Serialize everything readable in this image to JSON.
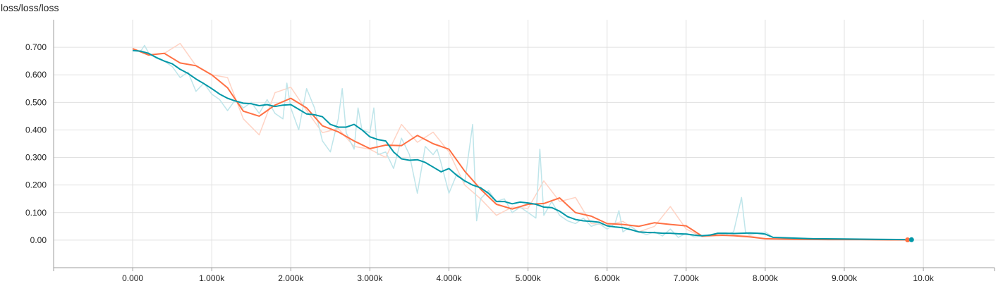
{
  "chart_data": {
    "type": "line",
    "title": "loss/loss/loss",
    "xlabel": "",
    "ylabel": "",
    "xlim": [
      -1000,
      10900
    ],
    "ylim": [
      -0.1,
      0.8
    ],
    "x_ticks": [
      0,
      1000,
      2000,
      3000,
      4000,
      5000,
      6000,
      7000,
      8000,
      9000,
      10000
    ],
    "x_tick_labels": [
      "0.000",
      "1.000k",
      "2.000k",
      "3.000k",
      "4.000k",
      "5.000k",
      "6.000k",
      "7.000k",
      "8.000k",
      "9.000k",
      "10.0k"
    ],
    "y_ticks": [
      0,
      0.1,
      0.2,
      0.3,
      0.4,
      0.5,
      0.6,
      0.7
    ],
    "y_tick_labels": [
      "0.00",
      "0.100",
      "0.200",
      "0.300",
      "0.400",
      "0.500",
      "0.600",
      "0.700"
    ],
    "grid": true,
    "colors": {
      "orange": "#ff7043",
      "orange_raw": "#ffd3c4",
      "teal": "#0097a7",
      "teal_raw": "#bfe5ea",
      "grid": "#e0e0e0",
      "axis": "#9e9e9e"
    },
    "series": [
      {
        "color": "orange",
        "raw": [
          [
            0,
            0.695
          ],
          [
            200,
            0.672
          ],
          [
            400,
            0.678
          ],
          [
            600,
            0.714
          ],
          [
            800,
            0.633
          ],
          [
            1000,
            0.6
          ],
          [
            1200,
            0.59
          ],
          [
            1400,
            0.44
          ],
          [
            1600,
            0.382
          ],
          [
            1800,
            0.535
          ],
          [
            2000,
            0.555
          ],
          [
            2200,
            0.47
          ],
          [
            2400,
            0.39
          ],
          [
            2600,
            0.405
          ],
          [
            2800,
            0.34
          ],
          [
            3000,
            0.33
          ],
          [
            3200,
            0.3
          ],
          [
            3400,
            0.42
          ],
          [
            3600,
            0.355
          ],
          [
            3800,
            0.392
          ],
          [
            4000,
            0.32
          ],
          [
            4200,
            0.2
          ],
          [
            4400,
            0.15
          ],
          [
            4600,
            0.09
          ],
          [
            4800,
            0.12
          ],
          [
            5000,
            0.115
          ],
          [
            5200,
            0.215
          ],
          [
            5400,
            0.14
          ],
          [
            5600,
            0.155
          ],
          [
            5800,
            0.06
          ],
          [
            6000,
            0.055
          ],
          [
            6200,
            0.068
          ],
          [
            6400,
            0.03
          ],
          [
            6600,
            0.05
          ],
          [
            6800,
            0.122
          ],
          [
            7000,
            0.04
          ],
          [
            7200,
            0.012
          ],
          [
            7400,
            0.015
          ],
          [
            7600,
            0.018
          ],
          [
            7800,
            0.016
          ],
          [
            8000,
            0.004
          ],
          [
            8400,
            0.003
          ],
          [
            8800,
            0.002
          ],
          [
            9200,
            0.002
          ],
          [
            9600,
            0.001
          ],
          [
            9800,
            0.001
          ]
        ],
        "smoothed": [
          [
            0,
            0.695
          ],
          [
            200,
            0.672
          ],
          [
            400,
            0.678
          ],
          [
            600,
            0.643
          ],
          [
            800,
            0.633
          ],
          [
            1000,
            0.6
          ],
          [
            1200,
            0.553
          ],
          [
            1400,
            0.468
          ],
          [
            1600,
            0.45
          ],
          [
            1800,
            0.49
          ],
          [
            2000,
            0.515
          ],
          [
            2200,
            0.48
          ],
          [
            2400,
            0.415
          ],
          [
            2600,
            0.393
          ],
          [
            2800,
            0.36
          ],
          [
            3000,
            0.332
          ],
          [
            3200,
            0.345
          ],
          [
            3400,
            0.343
          ],
          [
            3600,
            0.38
          ],
          [
            3800,
            0.35
          ],
          [
            4000,
            0.33
          ],
          [
            4200,
            0.25
          ],
          [
            4400,
            0.185
          ],
          [
            4600,
            0.13
          ],
          [
            4800,
            0.113
          ],
          [
            5000,
            0.13
          ],
          [
            5200,
            0.133
          ],
          [
            5400,
            0.153
          ],
          [
            5600,
            0.1
          ],
          [
            5800,
            0.087
          ],
          [
            6000,
            0.06
          ],
          [
            6200,
            0.057
          ],
          [
            6400,
            0.05
          ],
          [
            6600,
            0.063
          ],
          [
            6800,
            0.057
          ],
          [
            7000,
            0.052
          ],
          [
            7200,
            0.015
          ],
          [
            7400,
            0.018
          ],
          [
            7600,
            0.016
          ],
          [
            7800,
            0.012
          ],
          [
            8000,
            0.005
          ],
          [
            8400,
            0.003
          ],
          [
            8800,
            0.002
          ],
          [
            9200,
            0.002
          ],
          [
            9600,
            0.001
          ],
          [
            9800,
            0.001
          ]
        ]
      },
      {
        "color": "teal",
        "raw": [
          [
            0,
            0.69
          ],
          [
            100,
            0.685
          ],
          [
            150,
            0.707
          ],
          [
            200,
            0.68
          ],
          [
            300,
            0.66
          ],
          [
            400,
            0.65
          ],
          [
            500,
            0.63
          ],
          [
            600,
            0.59
          ],
          [
            700,
            0.61
          ],
          [
            800,
            0.54
          ],
          [
            900,
            0.57
          ],
          [
            1000,
            0.53
          ],
          [
            1100,
            0.51
          ],
          [
            1200,
            0.47
          ],
          [
            1300,
            0.51
          ],
          [
            1400,
            0.48
          ],
          [
            1500,
            0.5
          ],
          [
            1600,
            0.46
          ],
          [
            1700,
            0.51
          ],
          [
            1800,
            0.46
          ],
          [
            1900,
            0.44
          ],
          [
            1950,
            0.57
          ],
          [
            2000,
            0.48
          ],
          [
            2100,
            0.4
          ],
          [
            2200,
            0.55
          ],
          [
            2300,
            0.48
          ],
          [
            2400,
            0.36
          ],
          [
            2500,
            0.32
          ],
          [
            2600,
            0.44
          ],
          [
            2650,
            0.55
          ],
          [
            2700,
            0.39
          ],
          [
            2800,
            0.33
          ],
          [
            2850,
            0.48
          ],
          [
            2900,
            0.4
          ],
          [
            3000,
            0.39
          ],
          [
            3050,
            0.48
          ],
          [
            3100,
            0.31
          ],
          [
            3200,
            0.32
          ],
          [
            3300,
            0.26
          ],
          [
            3400,
            0.37
          ],
          [
            3500,
            0.31
          ],
          [
            3600,
            0.17
          ],
          [
            3700,
            0.34
          ],
          [
            3800,
            0.31
          ],
          [
            3850,
            0.33
          ],
          [
            3900,
            0.28
          ],
          [
            4000,
            0.17
          ],
          [
            4100,
            0.24
          ],
          [
            4200,
            0.21
          ],
          [
            4300,
            0.42
          ],
          [
            4350,
            0.07
          ],
          [
            4400,
            0.15
          ],
          [
            4500,
            0.18
          ],
          [
            4600,
            0.14
          ],
          [
            4700,
            0.15
          ],
          [
            4800,
            0.1
          ],
          [
            4900,
            0.12
          ],
          [
            5000,
            0.1
          ],
          [
            5100,
            0.08
          ],
          [
            5150,
            0.33
          ],
          [
            5200,
            0.09
          ],
          [
            5300,
            0.14
          ],
          [
            5400,
            0.09
          ],
          [
            5500,
            0.07
          ],
          [
            5600,
            0.06
          ],
          [
            5700,
            0.08
          ],
          [
            5800,
            0.05
          ],
          [
            5900,
            0.06
          ],
          [
            6000,
            0.04
          ],
          [
            6100,
            0.06
          ],
          [
            6150,
            0.107
          ],
          [
            6200,
            0.03
          ],
          [
            6300,
            0.05
          ],
          [
            6400,
            0.03
          ],
          [
            6500,
            0.02
          ],
          [
            6600,
            0.03
          ],
          [
            6700,
            0.015
          ],
          [
            6800,
            0.04
          ],
          [
            6900,
            0.01
          ],
          [
            7000,
            0.025
          ],
          [
            7100,
            0.012
          ],
          [
            7200,
            0.015
          ],
          [
            7300,
            0.02
          ],
          [
            7400,
            0.025
          ],
          [
            7500,
            0.02
          ],
          [
            7600,
            0.03
          ],
          [
            7700,
            0.155
          ],
          [
            7750,
            0.03
          ],
          [
            7800,
            0.02
          ],
          [
            7900,
            0.025
          ],
          [
            8000,
            0.03
          ],
          [
            8100,
            0.01
          ],
          [
            8300,
            0.008
          ],
          [
            8600,
            0.005
          ],
          [
            9000,
            0.004
          ],
          [
            9400,
            0.003
          ],
          [
            9800,
            0.002
          ]
        ],
        "smoothed": [
          [
            0,
            0.688
          ],
          [
            100,
            0.686
          ],
          [
            200,
            0.678
          ],
          [
            300,
            0.663
          ],
          [
            400,
            0.65
          ],
          [
            500,
            0.64
          ],
          [
            600,
            0.62
          ],
          [
            700,
            0.605
          ],
          [
            800,
            0.585
          ],
          [
            900,
            0.568
          ],
          [
            1000,
            0.55
          ],
          [
            1100,
            0.53
          ],
          [
            1200,
            0.515
          ],
          [
            1300,
            0.505
          ],
          [
            1400,
            0.497
          ],
          [
            1500,
            0.495
          ],
          [
            1600,
            0.488
          ],
          [
            1700,
            0.492
          ],
          [
            1800,
            0.485
          ],
          [
            1900,
            0.49
          ],
          [
            2000,
            0.492
          ],
          [
            2100,
            0.475
          ],
          [
            2200,
            0.458
          ],
          [
            2300,
            0.455
          ],
          [
            2400,
            0.448
          ],
          [
            2500,
            0.42
          ],
          [
            2600,
            0.41
          ],
          [
            2700,
            0.41
          ],
          [
            2800,
            0.42
          ],
          [
            2900,
            0.4
          ],
          [
            3000,
            0.375
          ],
          [
            3100,
            0.365
          ],
          [
            3200,
            0.36
          ],
          [
            3300,
            0.32
          ],
          [
            3400,
            0.295
          ],
          [
            3500,
            0.29
          ],
          [
            3600,
            0.292
          ],
          [
            3700,
            0.282
          ],
          [
            3800,
            0.265
          ],
          [
            3900,
            0.248
          ],
          [
            4000,
            0.26
          ],
          [
            4100,
            0.235
          ],
          [
            4200,
            0.215
          ],
          [
            4300,
            0.2
          ],
          [
            4400,
            0.19
          ],
          [
            4500,
            0.17
          ],
          [
            4600,
            0.14
          ],
          [
            4700,
            0.14
          ],
          [
            4800,
            0.132
          ],
          [
            4900,
            0.138
          ],
          [
            5000,
            0.135
          ],
          [
            5100,
            0.13
          ],
          [
            5200,
            0.12
          ],
          [
            5300,
            0.118
          ],
          [
            5400,
            0.105
          ],
          [
            5500,
            0.085
          ],
          [
            5600,
            0.075
          ],
          [
            5700,
            0.07
          ],
          [
            5800,
            0.068
          ],
          [
            5900,
            0.065
          ],
          [
            6000,
            0.052
          ],
          [
            6100,
            0.048
          ],
          [
            6200,
            0.045
          ],
          [
            6300,
            0.038
          ],
          [
            6400,
            0.03
          ],
          [
            6500,
            0.028
          ],
          [
            6600,
            0.027
          ],
          [
            6700,
            0.025
          ],
          [
            6800,
            0.025
          ],
          [
            6900,
            0.023
          ],
          [
            7000,
            0.022
          ],
          [
            7100,
            0.018
          ],
          [
            7200,
            0.016
          ],
          [
            7300,
            0.018
          ],
          [
            7400,
            0.025
          ],
          [
            7500,
            0.025
          ],
          [
            7600,
            0.024
          ],
          [
            7700,
            0.025
          ],
          [
            7800,
            0.026
          ],
          [
            7900,
            0.025
          ],
          [
            8000,
            0.022
          ],
          [
            8100,
            0.01
          ],
          [
            8300,
            0.008
          ],
          [
            8600,
            0.005
          ],
          [
            9000,
            0.004
          ],
          [
            9400,
            0.003
          ],
          [
            9800,
            0.002
          ],
          [
            9850,
            0.0015
          ]
        ]
      }
    ]
  }
}
